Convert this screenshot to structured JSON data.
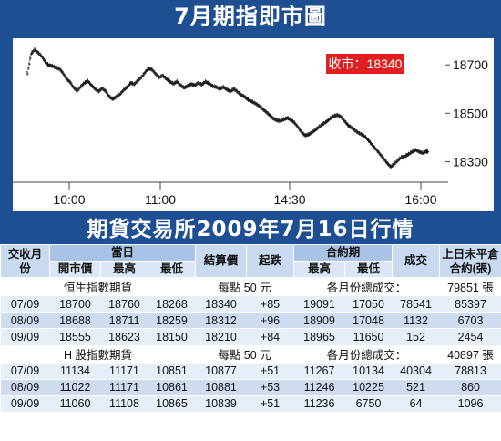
{
  "title": "7月期指即市圖",
  "table_title": "期貨交易所2009年7月16日行情",
  "chart_data": {
    "type": "line",
    "x_ticks": [
      "10:00",
      "11:00",
      "14:30",
      "16:00"
    ],
    "y_ticks": [
      18700,
      18500,
      18300
    ],
    "ylim": [
      18230,
      18810
    ],
    "annotation": "收市：18340",
    "series_points": [
      [
        0,
        18665
      ],
      [
        4,
        18745
      ],
      [
        8,
        18762
      ],
      [
        12,
        18750
      ],
      [
        16,
        18735
      ],
      [
        20,
        18712
      ],
      [
        24,
        18698
      ],
      [
        28,
        18695
      ],
      [
        32,
        18688
      ],
      [
        36,
        18683
      ],
      [
        40,
        18665
      ],
      [
        44,
        18642
      ],
      [
        48,
        18628
      ],
      [
        52,
        18605
      ],
      [
        56,
        18592
      ],
      [
        60,
        18610
      ],
      [
        64,
        18625
      ],
      [
        68,
        18632
      ],
      [
        72,
        18615
      ],
      [
        76,
        18600
      ],
      [
        80,
        18590
      ],
      [
        84,
        18603
      ],
      [
        88,
        18590
      ],
      [
        92,
        18568
      ],
      [
        96,
        18558
      ],
      [
        100,
        18568
      ],
      [
        104,
        18578
      ],
      [
        108,
        18595
      ],
      [
        112,
        18608
      ],
      [
        116,
        18625
      ],
      [
        120,
        18620
      ],
      [
        124,
        18635
      ],
      [
        128,
        18648
      ],
      [
        132,
        18668
      ],
      [
        136,
        18685
      ],
      [
        140,
        18680
      ],
      [
        144,
        18662
      ],
      [
        148,
        18648
      ],
      [
        152,
        18655
      ],
      [
        156,
        18642
      ],
      [
        160,
        18630
      ],
      [
        164,
        18622
      ],
      [
        168,
        18630
      ],
      [
        172,
        18615
      ],
      [
        176,
        18605
      ],
      [
        180,
        18612
      ],
      [
        184,
        18620
      ],
      [
        188,
        18615
      ],
      [
        192,
        18625
      ],
      [
        196,
        18618
      ],
      [
        200,
        18630
      ],
      [
        204,
        18622
      ],
      [
        208,
        18612
      ],
      [
        212,
        18608
      ],
      [
        216,
        18600
      ],
      [
        220,
        18608
      ],
      [
        224,
        18598
      ],
      [
        228,
        18590
      ],
      [
        232,
        18600
      ],
      [
        236,
        18588
      ],
      [
        240,
        18575
      ],
      [
        244,
        18568
      ],
      [
        248,
        18555
      ],
      [
        252,
        18548
      ],
      [
        256,
        18540
      ],
      [
        260,
        18530
      ],
      [
        264,
        18518
      ],
      [
        268,
        18505
      ],
      [
        272,
        18492
      ],
      [
        276,
        18478
      ],
      [
        280,
        18470
      ],
      [
        284,
        18468
      ],
      [
        288,
        18474
      ],
      [
        292,
        18480
      ],
      [
        296,
        18472
      ],
      [
        300,
        18460
      ],
      [
        304,
        18440
      ],
      [
        308,
        18420
      ],
      [
        312,
        18408
      ],
      [
        316,
        18412
      ],
      [
        320,
        18422
      ],
      [
        324,
        18432
      ],
      [
        328,
        18445
      ],
      [
        332,
        18455
      ],
      [
        336,
        18465
      ],
      [
        340,
        18478
      ],
      [
        344,
        18488
      ],
      [
        348,
        18492
      ],
      [
        352,
        18485
      ],
      [
        356,
        18468
      ],
      [
        360,
        18450
      ],
      [
        364,
        18440
      ],
      [
        368,
        18428
      ],
      [
        372,
        18418
      ],
      [
        376,
        18410
      ],
      [
        380,
        18400
      ],
      [
        384,
        18382
      ],
      [
        388,
        18365
      ],
      [
        392,
        18348
      ],
      [
        396,
        18330
      ],
      [
        400,
        18312
      ],
      [
        404,
        18293
      ],
      [
        408,
        18278
      ],
      [
        412,
        18290
      ],
      [
        416,
        18305
      ],
      [
        420,
        18318
      ],
      [
        424,
        18322
      ],
      [
        428,
        18330
      ],
      [
        432,
        18340
      ],
      [
        436,
        18348
      ],
      [
        440,
        18340
      ],
      [
        444,
        18335
      ],
      [
        448,
        18342
      ],
      [
        450,
        18340
      ]
    ]
  },
  "table": {
    "head1": {
      "month_header": "交收月份",
      "day_group": "當日",
      "settle": "結算價",
      "change": "起跌",
      "contract_group": "合約期",
      "volume": "成交",
      "oi": "上日未平倉合約(張)"
    },
    "head2": {
      "open": "開市價",
      "high": "最高",
      "low": "最低",
      "c_high": "最高",
      "c_low": "最低"
    },
    "sections": [
      {
        "name": "恒生指數期貨",
        "point_value": "每點 50 元",
        "total_label": "各月份總成交：",
        "total_value": "79851 張",
        "rows": [
          [
            "07/09",
            "18700",
            "18760",
            "18268",
            "18340",
            "+85",
            "19091",
            "17050",
            "78541",
            "85397"
          ],
          [
            "08/09",
            "18688",
            "18711",
            "18259",
            "18312",
            "+96",
            "18909",
            "17048",
            "1132",
            "6703"
          ],
          [
            "09/09",
            "18555",
            "18623",
            "18150",
            "18210",
            "+84",
            "18965",
            "11650",
            "152",
            "2454"
          ]
        ]
      },
      {
        "name": "H 股指數期貨",
        "point_value": "每點 50 元",
        "total_label": "各月份總成交：",
        "total_value": "40897 張",
        "rows": [
          [
            "07/09",
            "11134",
            "11171",
            "10851",
            "10877",
            "+51",
            "11267",
            "10134",
            "40304",
            "78813"
          ],
          [
            "08/09",
            "11022",
            "11171",
            "10861",
            "10881",
            "+53",
            "11246",
            "10225",
            "521",
            "860"
          ],
          [
            "09/09",
            "11060",
            "11108",
            "10865",
            "10839",
            "+51",
            "11236",
            "6750",
            "64",
            "1096"
          ]
        ]
      }
    ]
  },
  "colors": {
    "band": "#1f4f93",
    "annotation_bg": "#e02020",
    "row_light": "#e6eef8",
    "row_dark": "#cfdcef"
  }
}
